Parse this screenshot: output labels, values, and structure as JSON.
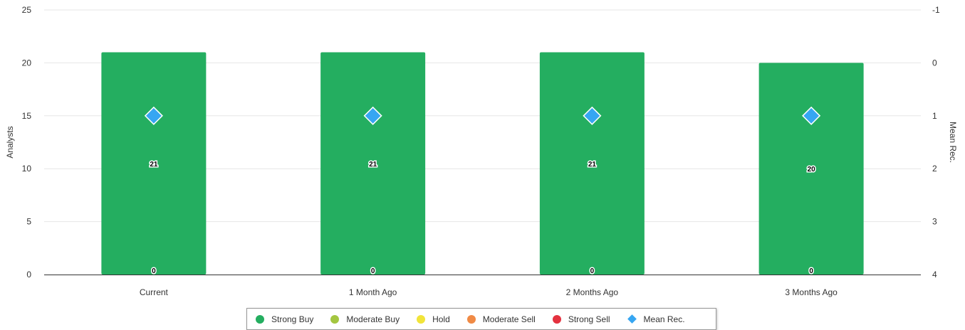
{
  "chart_data": {
    "type": "bar",
    "categories": [
      "Current",
      "1 Month Ago",
      "2 Months Ago",
      "3 Months Ago"
    ],
    "series": [
      {
        "name": "Strong Buy",
        "color": "#24ae60",
        "values": [
          21,
          21,
          21,
          20
        ]
      },
      {
        "name": "Moderate Buy",
        "color": "#a4c640",
        "values": [
          0,
          0,
          0,
          0
        ]
      },
      {
        "name": "Hold",
        "color": "#f1e43a",
        "values": [
          0,
          0,
          0,
          0
        ]
      },
      {
        "name": "Moderate Sell",
        "color": "#f08a45",
        "values": [
          0,
          0,
          0,
          0
        ]
      },
      {
        "name": "Strong Sell",
        "color": "#e4323f",
        "values": [
          0,
          0,
          0,
          0
        ]
      }
    ],
    "mean_rec": {
      "name": "Mean Rec.",
      "color": "#36a6f2",
      "values": [
        1,
        1,
        1,
        1
      ]
    },
    "bar_labels": {
      "top": [
        "21",
        "21",
        "21",
        "20"
      ],
      "bottom": [
        "0",
        "0",
        "0",
        "0"
      ]
    },
    "ylabel": "Analysts",
    "ylim": [
      0,
      25
    ],
    "yticks": [
      "0",
      "5",
      "10",
      "15",
      "20",
      "25"
    ],
    "y2label": "Mean Rec.",
    "y2lim": [
      -1,
      4
    ],
    "y2_reversed": true,
    "y2ticks": [
      "-1",
      "0",
      "1",
      "2",
      "3",
      "4"
    ],
    "grid": true,
    "legend_position": "bottom-center"
  },
  "legend": [
    {
      "label": "Strong Buy",
      "color": "#24ae60",
      "shape": "circle"
    },
    {
      "label": "Moderate Buy",
      "color": "#a4c640",
      "shape": "circle"
    },
    {
      "label": "Hold",
      "color": "#f1e43a",
      "shape": "circle"
    },
    {
      "label": "Moderate Sell",
      "color": "#f08a45",
      "shape": "circle"
    },
    {
      "label": "Strong Sell",
      "color": "#e4323f",
      "shape": "circle"
    },
    {
      "label": "Mean Rec.",
      "color": "#36a6f2",
      "shape": "diamond"
    }
  ]
}
